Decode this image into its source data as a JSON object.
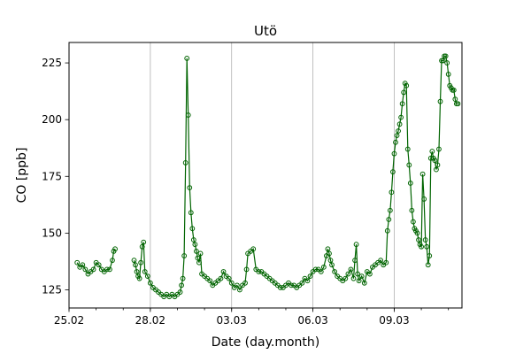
{
  "chart_data": {
    "type": "line",
    "title": "Utö",
    "xlabel": "Date (day.month)",
    "ylabel": "CO [ppb]",
    "x_tick_labels": [
      "25.02",
      "28.02",
      "03.03",
      "06.03",
      "09.03"
    ],
    "x_tick_positions": [
      0,
      3,
      6,
      9,
      12
    ],
    "y_ticks": [
      125,
      150,
      175,
      200,
      225
    ],
    "xlim": [
      0,
      14.5
    ],
    "ylim": [
      117,
      234
    ],
    "grid_x": true,
    "grid_y": false,
    "series": [
      {
        "name": "",
        "color": "#006400",
        "marker": "circle-open",
        "segments": [
          [
            [
              0.3,
              137
            ],
            [
              0.4,
              135
            ],
            [
              0.5,
              136
            ],
            [
              0.6,
              134
            ],
            [
              0.7,
              132
            ],
            [
              0.8,
              133
            ],
            [
              0.9,
              134
            ],
            [
              1.0,
              137
            ],
            [
              1.1,
              136
            ],
            [
              1.2,
              134
            ],
            [
              1.3,
              133
            ],
            [
              1.4,
              134
            ],
            [
              1.5,
              134
            ],
            [
              1.6,
              138
            ],
            [
              1.65,
              142
            ],
            [
              1.7,
              143
            ]
          ],
          [
            [
              2.4,
              138
            ],
            [
              2.45,
              136
            ],
            [
              2.5,
              133
            ],
            [
              2.55,
              131
            ],
            [
              2.6,
              130
            ],
            [
              2.65,
              137
            ],
            [
              2.7,
              144
            ],
            [
              2.75,
              146
            ],
            [
              2.8,
              133
            ],
            [
              2.9,
              131
            ],
            [
              3.0,
              128
            ],
            [
              3.1,
              126
            ],
            [
              3.2,
              125
            ],
            [
              3.3,
              124
            ],
            [
              3.4,
              123
            ],
            [
              3.5,
              122
            ],
            [
              3.6,
              123
            ],
            [
              3.7,
              122
            ],
            [
              3.8,
              123
            ],
            [
              3.9,
              122
            ],
            [
              4.0,
              123
            ],
            [
              4.1,
              124
            ],
            [
              4.15,
              127
            ],
            [
              4.2,
              130
            ],
            [
              4.25,
              140
            ],
            [
              4.3,
              181
            ],
            [
              4.35,
              227
            ],
            [
              4.4,
              202
            ],
            [
              4.45,
              170
            ],
            [
              4.5,
              159
            ],
            [
              4.55,
              152
            ],
            [
              4.6,
              147
            ],
            [
              4.65,
              145
            ],
            [
              4.7,
              142
            ],
            [
              4.75,
              139
            ],
            [
              4.8,
              137
            ],
            [
              4.85,
              141
            ],
            [
              4.9,
              132
            ],
            [
              5.0,
              131
            ],
            [
              5.1,
              130
            ],
            [
              5.2,
              129
            ],
            [
              5.3,
              127
            ],
            [
              5.4,
              128
            ],
            [
              5.5,
              129
            ],
            [
              5.6,
              130
            ],
            [
              5.7,
              133
            ],
            [
              5.8,
              131
            ],
            [
              5.9,
              130
            ],
            [
              6.0,
              128
            ],
            [
              6.1,
              126
            ],
            [
              6.2,
              127
            ],
            [
              6.3,
              125
            ],
            [
              6.4,
              127
            ],
            [
              6.5,
              128
            ],
            [
              6.55,
              134
            ],
            [
              6.6,
              141
            ],
            [
              6.7,
              142
            ],
            [
              6.8,
              143
            ],
            [
              6.9,
              134
            ],
            [
              7.0,
              133
            ],
            [
              7.1,
              133
            ],
            [
              7.2,
              132
            ],
            [
              7.3,
              131
            ],
            [
              7.4,
              130
            ],
            [
              7.5,
              129
            ],
            [
              7.6,
              128
            ],
            [
              7.7,
              127
            ],
            [
              7.8,
              126
            ],
            [
              7.9,
              126
            ],
            [
              8.0,
              127
            ],
            [
              8.1,
              128
            ],
            [
              8.2,
              127
            ],
            [
              8.3,
              127
            ],
            [
              8.4,
              126
            ],
            [
              8.5,
              127
            ],
            [
              8.6,
              128
            ],
            [
              8.7,
              130
            ],
            [
              8.8,
              129
            ],
            [
              8.9,
              131
            ],
            [
              9.0,
              133
            ],
            [
              9.1,
              134
            ],
            [
              9.2,
              134
            ],
            [
              9.3,
              133
            ],
            [
              9.4,
              135
            ],
            [
              9.5,
              140
            ],
            [
              9.55,
              143
            ],
            [
              9.6,
              141
            ],
            [
              9.65,
              138
            ],
            [
              9.7,
              136
            ],
            [
              9.8,
              133
            ],
            [
              9.9,
              131
            ],
            [
              10.0,
              130
            ],
            [
              10.1,
              129
            ],
            [
              10.2,
              130
            ],
            [
              10.3,
              132
            ],
            [
              10.4,
              134
            ],
            [
              10.5,
              130
            ],
            [
              10.55,
              138
            ],
            [
              10.6,
              145
            ],
            [
              10.65,
              132
            ],
            [
              10.7,
              129
            ],
            [
              10.8,
              131
            ],
            [
              10.9,
              128
            ],
            [
              11.0,
              133
            ],
            [
              11.1,
              132
            ],
            [
              11.2,
              135
            ],
            [
              11.3,
              136
            ],
            [
              11.4,
              137
            ],
            [
              11.5,
              138
            ],
            [
              11.6,
              136
            ],
            [
              11.7,
              137
            ],
            [
              11.75,
              151
            ],
            [
              11.8,
              156
            ],
            [
              11.85,
              160
            ],
            [
              11.9,
              168
            ],
            [
              11.95,
              177
            ],
            [
              12.0,
              185
            ],
            [
              12.05,
              190
            ],
            [
              12.1,
              193
            ],
            [
              12.15,
              195
            ],
            [
              12.2,
              198
            ],
            [
              12.25,
              201
            ],
            [
              12.3,
              207
            ],
            [
              12.35,
              212
            ],
            [
              12.4,
              216
            ],
            [
              12.45,
              215
            ],
            [
              12.5,
              187
            ],
            [
              12.55,
              180
            ],
            [
              12.6,
              172
            ],
            [
              12.65,
              160
            ],
            [
              12.7,
              155
            ],
            [
              12.75,
              152
            ],
            [
              12.8,
              151
            ],
            [
              12.85,
              150
            ],
            [
              12.9,
              147
            ],
            [
              12.95,
              145
            ],
            [
              13.0,
              144
            ],
            [
              13.05,
              176
            ],
            [
              13.1,
              165
            ],
            [
              13.15,
              147
            ],
            [
              13.2,
              144
            ],
            [
              13.25,
              136
            ],
            [
              13.3,
              140
            ],
            [
              13.35,
              183
            ],
            [
              13.4,
              186
            ],
            [
              13.45,
              183
            ],
            [
              13.5,
              182
            ],
            [
              13.55,
              178
            ],
            [
              13.6,
              180
            ],
            [
              13.65,
              187
            ],
            [
              13.7,
              208
            ],
            [
              13.75,
              226
            ],
            [
              13.8,
              226
            ],
            [
              13.85,
              228
            ],
            [
              13.9,
              228
            ],
            [
              13.95,
              225
            ],
            [
              14.0,
              220
            ],
            [
              14.05,
              215
            ],
            [
              14.1,
              214
            ],
            [
              14.15,
              213
            ],
            [
              14.2,
              213
            ],
            [
              14.25,
              209
            ],
            [
              14.3,
              207
            ],
            [
              14.35,
              207
            ]
          ]
        ]
      }
    ]
  }
}
